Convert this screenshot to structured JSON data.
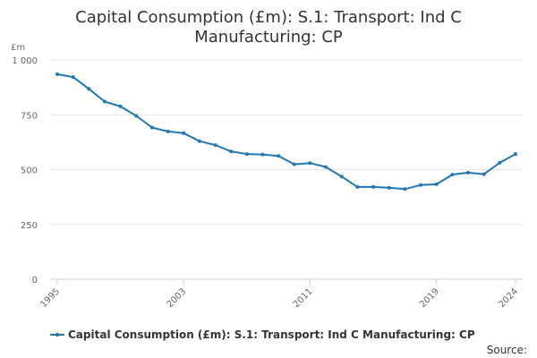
{
  "chart_data": {
    "type": "line",
    "title_lines": [
      "Capital Consumption (£m): S.1: Transport: Ind C",
      "Manufacturing: CP"
    ],
    "ylabel": "£m",
    "ylim": [
      0,
      1000
    ],
    "yticks": [
      0,
      250,
      500,
      750,
      1000
    ],
    "ytick_labels": [
      "0",
      "250",
      "500",
      "750",
      "1 000"
    ],
    "xlim": [
      1995,
      2024
    ],
    "xticks": [
      1995,
      2003,
      2011,
      2019,
      2024
    ],
    "xtick_labels": [
      "1995",
      "2003",
      "2011",
      "2019",
      "2024"
    ],
    "grid": true,
    "legend_position": "bottom",
    "series": [
      {
        "name": "Capital Consumption (£m): S.1: Transport: Ind C Manufacturing: CP",
        "color": "#1f77b4",
        "x": [
          1995,
          1996,
          1997,
          1998,
          1999,
          2000,
          2001,
          2002,
          2003,
          2004,
          2005,
          2006,
          2007,
          2008,
          2009,
          2010,
          2011,
          2012,
          2013,
          2014,
          2015,
          2016,
          2017,
          2018,
          2019,
          2020,
          2021,
          2022,
          2023,
          2024
        ],
        "values": [
          935,
          922,
          868,
          810,
          788,
          745,
          692,
          674,
          666,
          630,
          612,
          583,
          571,
          569,
          562,
          524,
          530,
          512,
          468,
          421,
          421,
          417,
          411,
          430,
          433,
          477,
          486,
          479,
          531,
          571
        ]
      }
    ],
    "source_label": "Source:"
  }
}
